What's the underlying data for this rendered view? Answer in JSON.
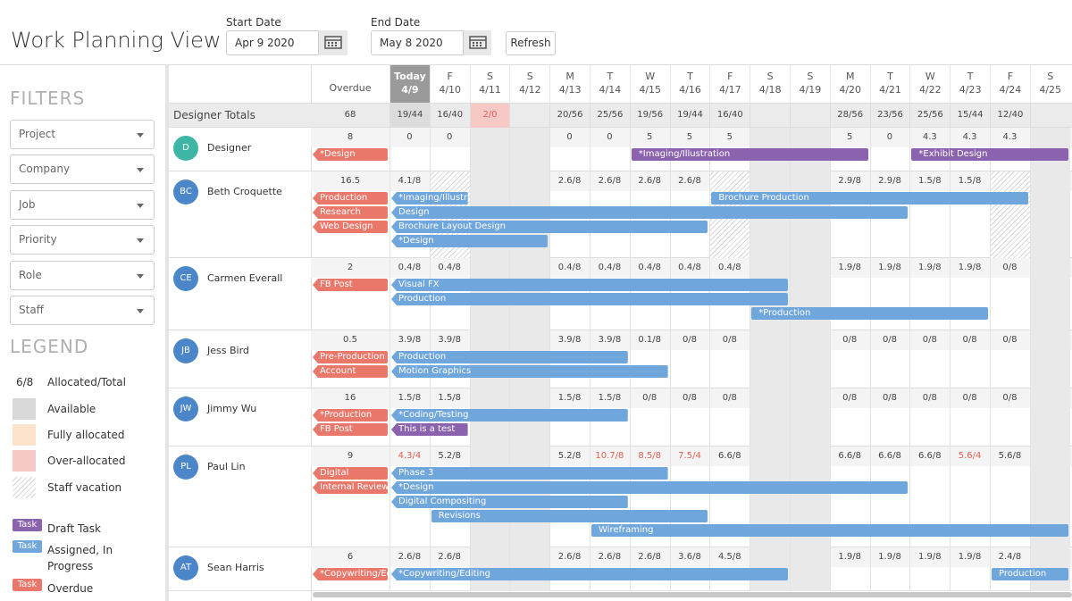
{
  "header": {
    "title": "Work Planning View",
    "start_date_label": "Start Date",
    "start_date": "Apr 9 2020",
    "end_date_label": "End Date",
    "end_date": "May 8 2020",
    "refresh": "Refresh"
  },
  "filters": {
    "title": "FILTERS",
    "items": [
      "Project",
      "Company",
      "Job",
      "Priority",
      "Role",
      "Staff"
    ]
  },
  "legend": {
    "title": "LEGEND",
    "allocation_example": "6/8",
    "allocation_label": "Allocated/Total",
    "swatches": [
      {
        "label": "Available",
        "color": "#d9d9d9"
      },
      {
        "label": "Fully allocated",
        "color": "#fde3cc"
      },
      {
        "label": "Over-allocated",
        "color": "#f6c9c6"
      },
      {
        "label": "Staff vacation",
        "color": "hatch"
      }
    ],
    "task_tag": "Task",
    "tasks": [
      {
        "label": "Draft Task",
        "kind": "draft"
      },
      {
        "label": "Assigned, In Progress",
        "kind": "assigned"
      },
      {
        "label": "Overdue",
        "kind": "overdue"
      }
    ]
  },
  "task_colors": {
    "draft": "#8a62ad",
    "assigned": "#6fa6dc",
    "overdue": "#e9786b"
  },
  "grid": {
    "overdue_label": "Overdue",
    "days": [
      {
        "dow": "Today",
        "date": "4/9",
        "today": true
      },
      {
        "dow": "F",
        "date": "4/10"
      },
      {
        "dow": "S",
        "date": "4/11",
        "weekend": true
      },
      {
        "dow": "S",
        "date": "4/12",
        "weekend": true
      },
      {
        "dow": "M",
        "date": "4/13"
      },
      {
        "dow": "T",
        "date": "4/14"
      },
      {
        "dow": "W",
        "date": "4/15"
      },
      {
        "dow": "T",
        "date": "4/16"
      },
      {
        "dow": "F",
        "date": "4/17"
      },
      {
        "dow": "S",
        "date": "4/18",
        "weekend": true
      },
      {
        "dow": "S",
        "date": "4/19",
        "weekend": true
      },
      {
        "dow": "M",
        "date": "4/20"
      },
      {
        "dow": "T",
        "date": "4/21"
      },
      {
        "dow": "W",
        "date": "4/22"
      },
      {
        "dow": "T",
        "date": "4/23"
      },
      {
        "dow": "F",
        "date": "4/24"
      },
      {
        "dow": "S",
        "date": "4/25",
        "weekend": true
      }
    ],
    "totals": {
      "label": "Designer Totals",
      "overdue": "68",
      "values": [
        "19/44",
        "16/40",
        "2/0",
        null,
        "20/56",
        "25/56",
        "19/56",
        "19/44",
        "16/40",
        null,
        null,
        "28/56",
        "23/56",
        "25/56",
        "15/44",
        "12/40",
        null
      ],
      "over_allocated": [
        "4/11"
      ]
    },
    "designers": [
      {
        "initials": "D",
        "name": "Designer",
        "color": "#3db6a6",
        "overdue": "8",
        "values": [
          "0",
          "0",
          null,
          null,
          "0",
          "0",
          "5",
          "5",
          "5",
          null,
          null,
          "5",
          "0",
          "4.3",
          "4.3",
          "4.3",
          null
        ],
        "overdue_tasks": [
          {
            "label": "*Design"
          }
        ],
        "tasks": [
          {
            "label": "*Imaging/Illustration",
            "kind": "draft",
            "from": "4/15",
            "to": "4/20"
          },
          {
            "label": "*Exhibit Design",
            "kind": "draft",
            "from": "4/22",
            "to": "4/25"
          }
        ]
      },
      {
        "initials": "BC",
        "name": "Beth Croquette",
        "color": "#4a86c8",
        "overdue": "16.5",
        "values": [
          "4.1/8",
          null,
          null,
          null,
          "2.6/8",
          "2.6/8",
          "2.6/8",
          "2.6/8",
          null,
          null,
          null,
          "2.9/8",
          "2.9/8",
          "1.5/8",
          "1.5/8",
          null,
          null
        ],
        "vacation": [
          "4/10",
          "4/17",
          "4/24"
        ],
        "overdue_tasks": [
          {
            "label": "Production"
          },
          {
            "label": "Research"
          },
          {
            "label": "Web Design"
          }
        ],
        "tasks": [
          {
            "label": "*Imaging/Illustr",
            "kind": "assigned",
            "from": "4/9",
            "to": "4/10"
          },
          {
            "label": "Brochure Production",
            "kind": "assigned",
            "from": "4/17",
            "to": "4/24"
          },
          {
            "label": "Design",
            "kind": "assigned",
            "from": "4/9",
            "to": "4/21"
          },
          {
            "label": "Brochure Layout Design",
            "kind": "assigned",
            "from": "4/9",
            "to": "4/16"
          },
          {
            "label": "*Design",
            "kind": "assigned",
            "from": "4/9",
            "to": "4/12"
          }
        ]
      },
      {
        "initials": "CE",
        "name": "Carmen Everall",
        "color": "#4a86c8",
        "overdue": "2",
        "values": [
          "0.4/8",
          "0.4/8",
          null,
          null,
          "0.4/8",
          "0.4/8",
          "0.4/8",
          "0.4/8",
          "0.4/8",
          null,
          null,
          "1.9/8",
          "1.9/8",
          "1.9/8",
          "1.9/8",
          "0/8",
          null
        ],
        "overdue_tasks": [
          {
            "label": "FB Post"
          }
        ],
        "tasks": [
          {
            "label": "Visual FX",
            "kind": "assigned",
            "from": "4/9",
            "to": "4/18"
          },
          {
            "label": "Production",
            "kind": "assigned",
            "from": "4/9",
            "to": "4/18"
          },
          {
            "label": "*Production",
            "kind": "assigned",
            "from": "4/18",
            "to": "4/23"
          }
        ]
      },
      {
        "initials": "JB",
        "name": "Jess Bird",
        "color": "#4a86c8",
        "overdue": "0.5",
        "values": [
          "3.9/8",
          "3.9/8",
          null,
          null,
          "3.9/8",
          "3.9/8",
          "0.1/8",
          "0/8",
          "0/8",
          null,
          null,
          "0/8",
          "0/8",
          "0/8",
          "0/8",
          "0/8",
          null
        ],
        "overdue_tasks": [
          {
            "label": "Pre-Production"
          },
          {
            "label": "Account"
          }
        ],
        "tasks": [
          {
            "label": "Production",
            "kind": "assigned",
            "from": "4/9",
            "to": "4/14"
          },
          {
            "label": "Motion Graphics",
            "kind": "assigned",
            "from": "4/9",
            "to": "4/15"
          }
        ]
      },
      {
        "initials": "JW",
        "name": "Jimmy Wu",
        "color": "#4a86c8",
        "overdue": "16",
        "values": [
          "1.5/8",
          "1.5/8",
          null,
          null,
          "1.5/8",
          "1.5/8",
          "0/8",
          "0/8",
          "0/8",
          null,
          null,
          "0/8",
          "0/8",
          "0/8",
          "0/8",
          "0/8",
          null
        ],
        "overdue_tasks": [
          {
            "label": "*Production"
          },
          {
            "label": "FB Post"
          }
        ],
        "tasks": [
          {
            "label": "*Coding/Testing",
            "kind": "assigned",
            "from": "4/9",
            "to": "4/14"
          },
          {
            "label": "This is a test",
            "kind": "draft",
            "from": "4/9",
            "to": "4/10"
          }
        ]
      },
      {
        "initials": "PL",
        "name": "Paul Lin",
        "color": "#4a86c8",
        "overdue": "9",
        "values": [
          "4.3/4",
          "5.2/8",
          null,
          null,
          "5.2/8",
          "10.7/8",
          "8.5/8",
          "7.5/4",
          "6.6/8",
          null,
          null,
          "6.6/8",
          "6.6/8",
          "6.6/8",
          "5.6/4",
          "5.6/8",
          null
        ],
        "over_allocated": [
          "4/9",
          "4/14",
          "4/15",
          "4/16",
          "4/23"
        ],
        "overdue_tasks": [
          {
            "label": "Digital"
          },
          {
            "label": "Internal Review"
          }
        ],
        "tasks": [
          {
            "label": "Phase 3",
            "kind": "assigned",
            "from": "4/9",
            "to": "4/15"
          },
          {
            "label": "*Design",
            "kind": "assigned",
            "from": "4/9",
            "to": "4/21"
          },
          {
            "label": "Digital Compositing",
            "kind": "assigned",
            "from": "4/9",
            "to": "4/14"
          },
          {
            "label": "Revisions",
            "kind": "assigned",
            "from": "4/10",
            "to": "4/16"
          },
          {
            "label": "Wireframing",
            "kind": "assigned",
            "from": "4/14",
            "to": "4/25"
          }
        ]
      },
      {
        "initials": "AT",
        "name": "Sean Harris",
        "color": "#4a86c8",
        "overdue": "6",
        "values": [
          "2.6/8",
          "2.6/8",
          null,
          null,
          "2.6/8",
          "2.6/8",
          "2.6/8",
          "3.6/8",
          "4.5/8",
          null,
          null,
          "1.9/8",
          "1.9/8",
          "1.9/8",
          "1.9/8",
          "2.4/8",
          null
        ],
        "overdue_tasks": [
          {
            "label": "*Copywriting/Ed"
          }
        ],
        "tasks": [
          {
            "label": "*Copywriting/Editing",
            "kind": "assigned",
            "from": "4/9",
            "to": "4/18"
          },
          {
            "label": "Production",
            "kind": "assigned",
            "from": "4/24",
            "to": "4/25"
          }
        ]
      }
    ]
  }
}
